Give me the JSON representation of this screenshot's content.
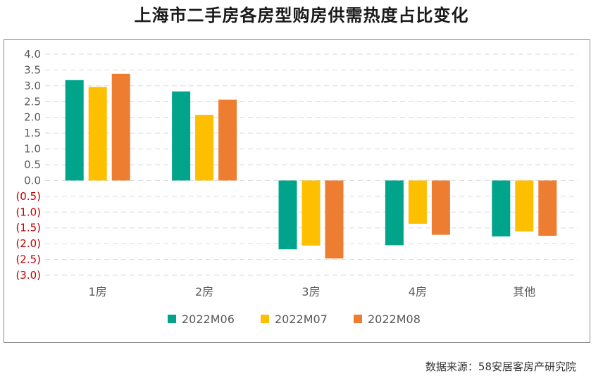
{
  "title": "上海市二手房各房型购房供需热度占比变化",
  "source": "数据来源：58安居客房产研究院",
  "colors": {
    "series": [
      "#00A48B",
      "#FDBF00",
      "#ED7D31"
    ],
    "negative_tick": "#C00000",
    "tick": "#595959",
    "grid": "#D9D9D9"
  },
  "chart_data": {
    "type": "bar",
    "title": "上海市二手房各房型购房供需热度占比变化",
    "xlabel": "",
    "ylabel": "",
    "categories": [
      "1房",
      "2房",
      "3房",
      "4房",
      "其他"
    ],
    "series": [
      {
        "name": "2022M06",
        "values": [
          3.18,
          2.82,
          -2.18,
          -2.05,
          -1.77
        ]
      },
      {
        "name": "2022M07",
        "values": [
          2.96,
          2.08,
          -2.06,
          -1.37,
          -1.61
        ]
      },
      {
        "name": "2022M08",
        "values": [
          3.38,
          2.56,
          -2.47,
          -1.72,
          -1.75
        ]
      }
    ],
    "ylim": [
      -3.0,
      4.0
    ],
    "yticks": [
      4.0,
      3.5,
      3.0,
      2.5,
      2.0,
      1.5,
      1.0,
      0.5,
      0.0,
      -0.5,
      -1.0,
      -1.5,
      -2.0,
      -2.5,
      -3.0
    ],
    "ytick_labels": [
      "4.0",
      "3.5",
      "3.0",
      "2.5",
      "2.0",
      "1.5",
      "1.0",
      "0.5",
      "0.0",
      "(0.5)",
      "(1.0)",
      "(1.5)",
      "(2.0)",
      "(2.5)",
      "(3.0)"
    ],
    "grid": true,
    "legend_position": "bottom"
  }
}
